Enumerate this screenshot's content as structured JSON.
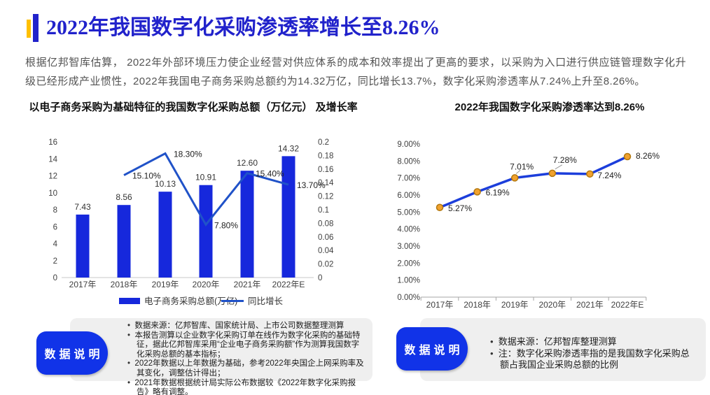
{
  "header": {
    "title": "2022年我国数字化采购渗透率增长至8.26%"
  },
  "intro": {
    "text": "根据亿邦智库估算， 2022年外部环境压力使企业经营对供应体系的成本和效率提出了更高的要求，以采购为入口进行供应链管理数字化升级已经形成产业惯性，2022年我国电子商务采购总额约为14.32万亿，同比增长13.7%，数字化采购渗透率从7.24%上升至8.26%。"
  },
  "colors": {
    "title_blue": "#2122CB",
    "accent_yellow": "#FFC000",
    "bar_blue": "#1628DC",
    "line_blue": "#2052C8",
    "line_blue2": "#1C3EDB",
    "marker_fill": "#F1A22E",
    "marker_stroke": "#B3780F",
    "badge_blue": "#1133E8",
    "fold_navy": "#1E3A5F",
    "panel_gray": "#EFEFEF"
  },
  "chart_data": [
    {
      "type": "bar",
      "title": "以电子商务采购为基础特征的我国数字化采购总额（万亿元） 及增长率",
      "categories": [
        "2017年",
        "2018年",
        "2019年",
        "2020年",
        "2021年",
        "2022年E"
      ],
      "series": [
        {
          "name": "电子商务采购总额(万亿)",
          "type": "bar",
          "axis": "left",
          "values": [
            7.43,
            8.56,
            10.13,
            10.91,
            12.6,
            14.32
          ],
          "labels": [
            "7.43",
            "8.56",
            "10.13",
            "10.91",
            "12.60",
            "14.32"
          ]
        },
        {
          "name": "同比增长",
          "type": "line",
          "axis": "right",
          "values": [
            null,
            0.151,
            0.183,
            0.078,
            0.154,
            0.137
          ],
          "labels": [
            "",
            "15.10%",
            "18.30%",
            "7.80%",
            "15.40%",
            "13.70%"
          ]
        }
      ],
      "left_axis": {
        "min": 0,
        "max": 16,
        "step": 2
      },
      "right_axis": {
        "min": 0,
        "max": 0.2,
        "step": 0.02
      },
      "legend": [
        "电子商务采购总额(万亿)",
        "同比增长"
      ],
      "legend_position": "bottom",
      "grid": false
    },
    {
      "type": "line",
      "title": "2022年我国数字化采购渗透率达到8.26%",
      "categories": [
        "2017年",
        "2018年",
        "2019年",
        "2020年",
        "2021年",
        "2022年E"
      ],
      "series": [
        {
          "name": "数字化采购渗透率",
          "values": [
            5.27,
            6.19,
            7.01,
            7.28,
            7.24,
            8.26
          ],
          "labels": [
            "5.27%",
            "6.19%",
            "7.01%",
            "7.28%",
            "7.24%",
            "8.26%"
          ]
        }
      ],
      "y_axis": {
        "min": 0,
        "max": 9,
        "step": 1,
        "unit": "%"
      },
      "legend_position": "none",
      "grid": false
    }
  ],
  "callouts": [
    {
      "badge": "数据说明",
      "bullets": [
        "数据来源：亿邦智库、国家统计局、上市公司数据整理测算",
        "本报告测算以企业数字化采购订单在线作为数字化采购的基础特征，据此亿邦智库采用“企业电子商务采购额”作为测算我国数字化采购总额的基本指标；",
        "2022年数据以上年数据为基础，参考2022年央国企上网采购率及其变化，调整估计得出；",
        "2021年数据根据统计局实际公布数据较《2022年数字化采购报告》略有调整。"
      ]
    },
    {
      "badge": "数据说明",
      "bullets": [
        "数据来源：亿邦智库整理测算",
        "注：数字化采购渗透率指的是我国数字化采购总额占我国企业采购总额的比例"
      ]
    }
  ]
}
